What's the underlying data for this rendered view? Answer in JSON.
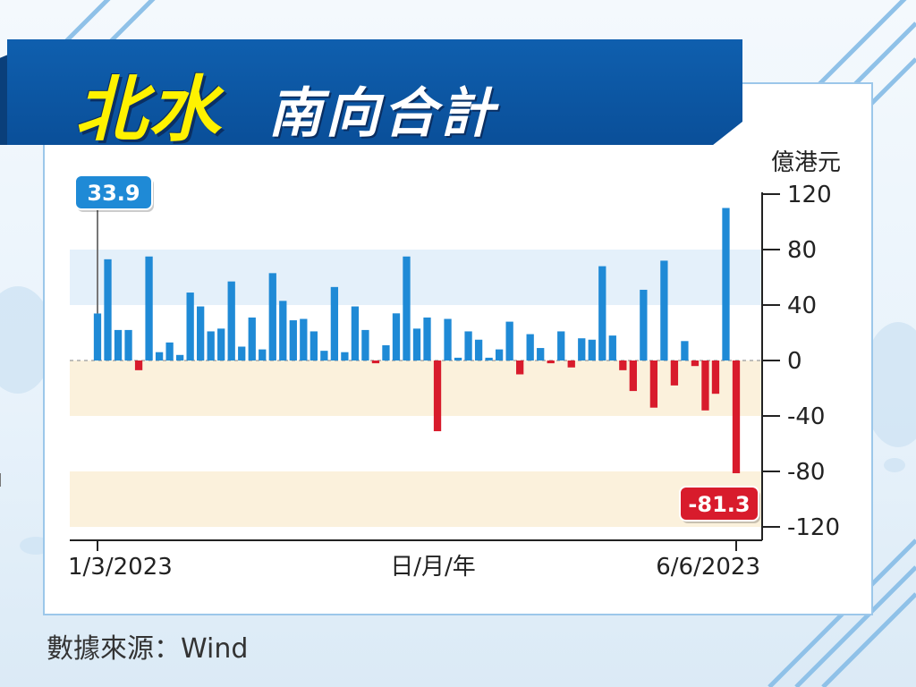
{
  "title": {
    "main": "北水",
    "sub": "南向合計"
  },
  "source": "數據來源：Wind",
  "colors": {
    "positive": "#1f8ad6",
    "negative": "#d81b2c",
    "banner": "#0a4f99",
    "band_blue": "#e4f0fa",
    "band_orange": "#fbf1dc"
  },
  "chart_data": {
    "type": "bar",
    "ylabel": "億港元",
    "xlabel": "日/月/年",
    "ylim": [
      -120,
      120
    ],
    "yticks": [
      "120",
      "80",
      "40",
      "0",
      "-40",
      "-80",
      "-120"
    ],
    "x_tick_labels": [
      "1/3/2023",
      "6/6/2023"
    ],
    "callouts": [
      {
        "text": "33.9",
        "index": 0,
        "value": 33.9
      },
      {
        "text": "-81.3",
        "index": 63,
        "value": -81.3
      }
    ],
    "values": [
      33.9,
      73,
      22,
      22,
      -7,
      75,
      6,
      13,
      4,
      49,
      39,
      21,
      23,
      57,
      10,
      31,
      8,
      63,
      43,
      29,
      30,
      21,
      7,
      53,
      6,
      39,
      22,
      -2,
      11,
      34,
      75,
      23,
      31,
      -51,
      30,
      2,
      21,
      15,
      2,
      8,
      28,
      -10,
      19,
      9,
      -2,
      21,
      -5,
      16,
      15,
      68,
      18,
      -7,
      -22,
      51,
      -34,
      72,
      -18,
      14,
      -4,
      -36,
      -24,
      110,
      -81.3
    ]
  }
}
